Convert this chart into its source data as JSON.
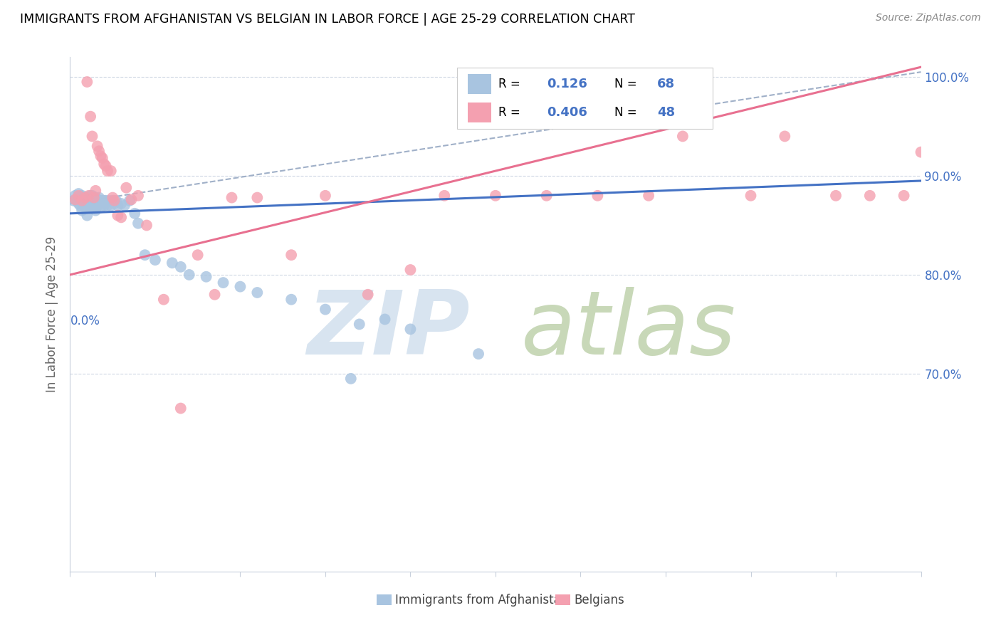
{
  "title": "IMMIGRANTS FROM AFGHANISTAN VS BELGIAN IN LABOR FORCE | AGE 25-29 CORRELATION CHART",
  "source": "Source: ZipAtlas.com",
  "ylabel": "In Labor Force | Age 25-29",
  "x_range": [
    0.0,
    0.5
  ],
  "y_range": [
    0.5,
    1.02
  ],
  "r_afghan": 0.126,
  "n_afghan": 68,
  "r_belgian": 0.406,
  "n_belgian": 48,
  "color_afghan": "#a8c4e0",
  "color_belgian": "#f4a0b0",
  "color_afghan_line": "#4472c4",
  "color_belgian_line": "#e87090",
  "color_dashed_line": "#a0b0c8",
  "color_right_axis": "#4472c4",
  "watermark_zip_color": "#d8e4f0",
  "watermark_atlas_color": "#c8d8b8",
  "grid_color": "#d0d8e4",
  "spine_color": "#c8d0dc",
  "af_line_x0": 0.0,
  "af_line_x1": 0.5,
  "af_line_y0": 0.862,
  "af_line_y1": 0.895,
  "be_line_x0": 0.0,
  "be_line_x1": 0.5,
  "be_line_y0": 0.8,
  "be_line_y1": 1.01,
  "dash_line_x0": 0.0,
  "dash_line_x1": 0.5,
  "dash_line_y0": 0.872,
  "dash_line_y1": 1.005
}
